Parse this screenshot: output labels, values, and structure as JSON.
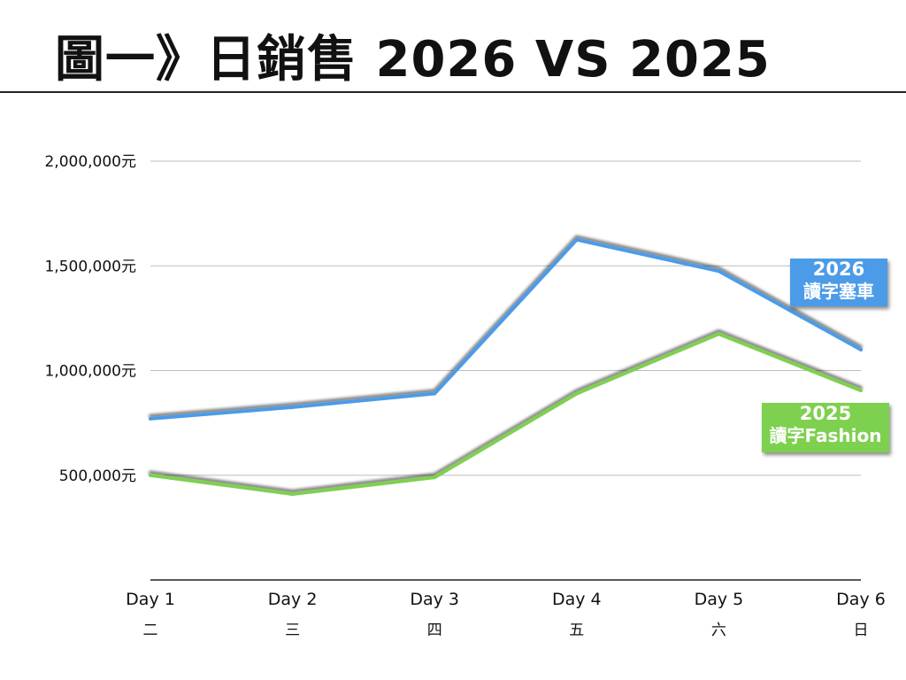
{
  "title": "圖一》日銷售 2026 VS 2025",
  "chart_data": {
    "type": "line",
    "categories": [
      "Day 1",
      "Day 2",
      "Day 3",
      "Day 4",
      "Day 5",
      "Day 6"
    ],
    "sub_categories": [
      "二",
      "三",
      "四",
      "五",
      "六",
      "日"
    ],
    "y_ticks": [
      {
        "value": 500000,
        "label": "500,000元"
      },
      {
        "value": 1000000,
        "label": "1,000,000元"
      },
      {
        "value": 1500000,
        "label": "1,500,000元"
      },
      {
        "value": 2000000,
        "label": "2,000,000元"
      }
    ],
    "ylim": [
      0,
      2000000
    ],
    "grid": true,
    "series": [
      {
        "name": "2026 讀字塞車",
        "year": "2026",
        "label": "讀字塞車",
        "color": "#4c9be8",
        "values": [
          770000,
          825000,
          890000,
          1625000,
          1475000,
          1100000
        ]
      },
      {
        "name": "2025 讀字Fashion",
        "year": "2025",
        "label": "讀字Fashion",
        "color": "#7ed04f",
        "values": [
          500000,
          410000,
          490000,
          890000,
          1175000,
          905000
        ]
      }
    ]
  }
}
